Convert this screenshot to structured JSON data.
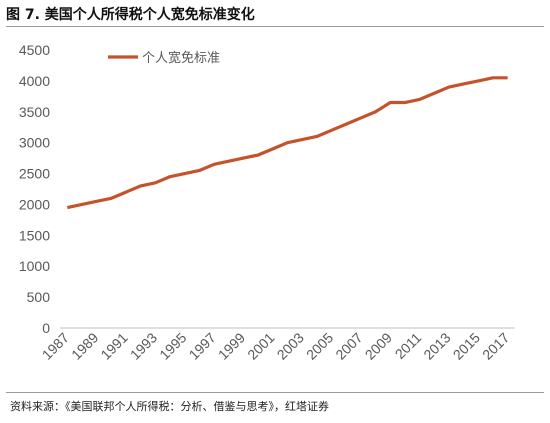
{
  "figure_title": "图 7. 美国个人所得税个人宽免标准变化",
  "source": "资料来源：《美国联邦个人所得税：分析、借鉴与思考》，红塔证券",
  "colors": {
    "series": "#c5522a",
    "axis": "#bfbfbf",
    "text": "#595959"
  },
  "chart_data": {
    "type": "line",
    "title": "",
    "xlabel": "",
    "ylabel": "",
    "ylim": [
      0,
      4500
    ],
    "yticks": [
      0,
      500,
      1000,
      1500,
      2000,
      2500,
      3000,
      3500,
      4000,
      4500
    ],
    "xtick_labels": [
      "1987",
      "1989",
      "1991",
      "1993",
      "1995",
      "1997",
      "1999",
      "2001",
      "2003",
      "2005",
      "2007",
      "2009",
      "2011",
      "2013",
      "2015",
      "2017"
    ],
    "grid": false,
    "legend": "top-left",
    "series": [
      {
        "name": "个人宽免标准",
        "x": [
          1987,
          1988,
          1989,
          1990,
          1991,
          1992,
          1993,
          1994,
          1995,
          1996,
          1997,
          1998,
          1999,
          2000,
          2001,
          2002,
          2003,
          2004,
          2005,
          2006,
          2007,
          2008,
          2009,
          2010,
          2011,
          2012,
          2013,
          2014,
          2015,
          2016,
          2017
        ],
        "values": [
          1950,
          2000,
          2050,
          2100,
          2200,
          2300,
          2350,
          2450,
          2500,
          2550,
          2650,
          2700,
          2750,
          2800,
          2900,
          3000,
          3050,
          3100,
          3200,
          3300,
          3400,
          3500,
          3650,
          3650,
          3700,
          3800,
          3900,
          3950,
          4000,
          4050,
          4050
        ]
      }
    ]
  }
}
